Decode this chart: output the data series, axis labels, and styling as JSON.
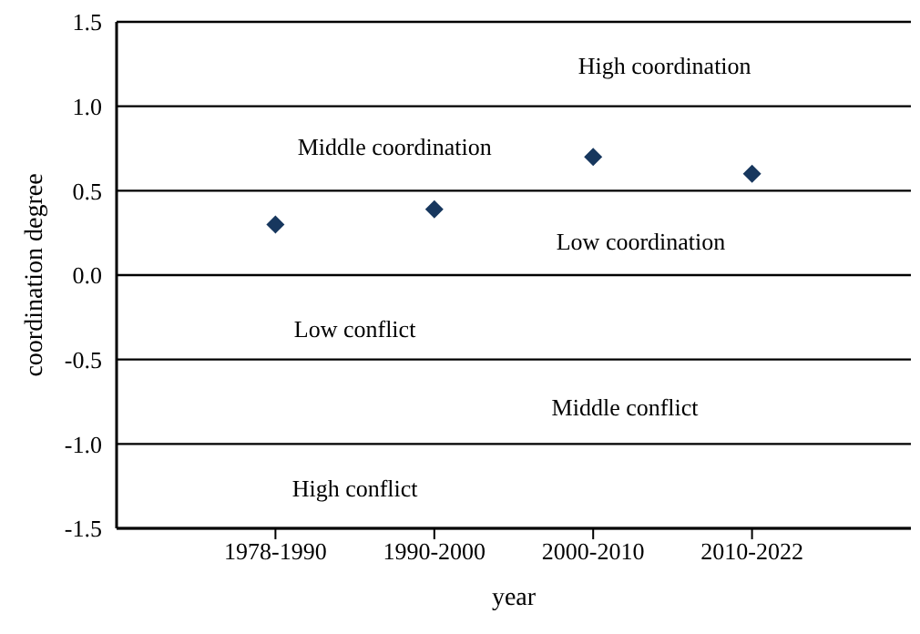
{
  "chart_data": {
    "type": "scatter",
    "xlabel": "year",
    "ylabel": "coordination degree",
    "categories": [
      "1978-1990",
      "1990-2000",
      "2000-2010",
      "2010-2022"
    ],
    "series": [
      {
        "color": "#17375e",
        "values": [
          0.3,
          0.39,
          0.7,
          0.6
        ]
      }
    ],
    "marker": "diamond",
    "grid": "y",
    "ylim": [
      -1.5,
      1.5
    ],
    "yticks": [
      {
        "value": -1.5,
        "label": "-1.5"
      },
      {
        "value": -1,
        "label": "-1.0"
      },
      {
        "value": -0.5,
        "label": "-0.5"
      },
      {
        "value": 0,
        "label": "0.0"
      },
      {
        "value": 0.5,
        "label": "0.5"
      },
      {
        "value": 1,
        "label": "1.0"
      },
      {
        "value": 1.5,
        "label": "1.5"
      }
    ],
    "annotations": [
      "High coordination",
      "Middle coordination",
      "Low coordination",
      "Low conflict",
      "Middle conflict",
      "High conflict"
    ]
  }
}
